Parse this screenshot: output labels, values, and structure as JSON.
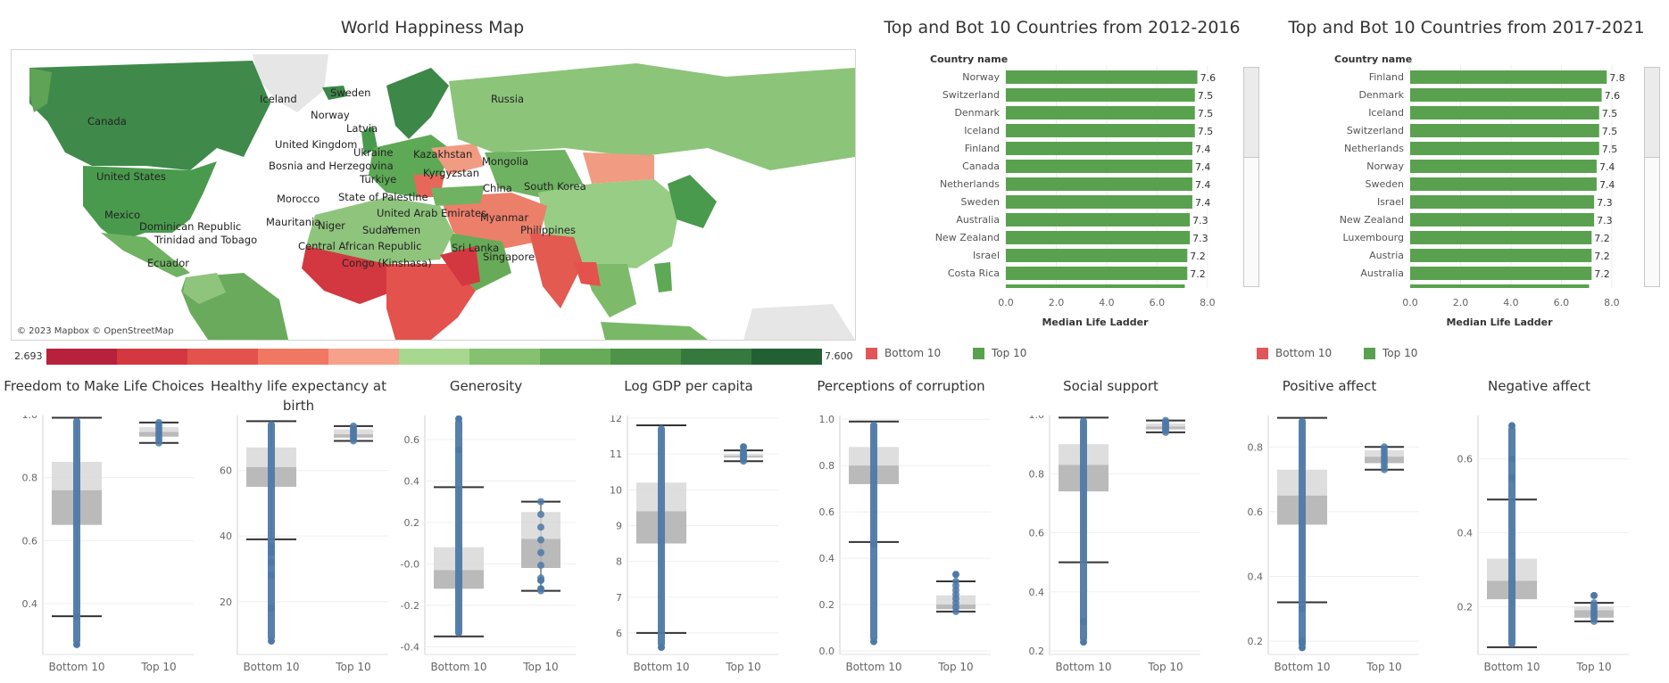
{
  "map": {
    "title": "World Happiness Map",
    "credit": "© 2023 Mapbox © OpenStreetMap",
    "legend_min": "2.693",
    "legend_max": "7.600",
    "legend_colors": [
      "#b8213c",
      "#d33840",
      "#e4524d",
      "#f07863",
      "#f7a08a",
      "#a8d890",
      "#86c170",
      "#67ab58",
      "#4d9449",
      "#35793e",
      "#226033"
    ],
    "labels": [
      "Iceland",
      "Sweden",
      "Norway",
      "Russia",
      "Canada",
      "Latvia",
      "United Kingdom",
      "Ukraine",
      "Kazakhstan",
      "Mongolia",
      "Bosnia and Herzegovina",
      "Kyrgyzstan",
      "Türkiye",
      "United States",
      "China",
      "South Korea",
      "Morocco",
      "State of Palestine",
      "United Arab Emirates",
      "Mexico",
      "Dominican Republic",
      "Mauritania",
      "Niger",
      "Sudan",
      "Yemen",
      "Myanmar",
      "Philippines",
      "Trinidad and Tobago",
      "Central African Republic",
      "Sri Lanka",
      "Singapore",
      "Ecuador",
      "Congo (Kinshasa)"
    ]
  },
  "chart_data": [
    {
      "type": "bar",
      "title": "Top and Bot 10 Countries from 2012-2016",
      "row_header": "Country name",
      "categories": [
        "Norway",
        "Switzerland",
        "Denmark",
        "Iceland",
        "Finland",
        "Canada",
        "Netherlands",
        "Sweden",
        "Australia",
        "New Zealand",
        "Israel",
        "Costa Rica"
      ],
      "values": [
        7.6,
        7.5,
        7.5,
        7.5,
        7.4,
        7.4,
        7.4,
        7.4,
        7.3,
        7.3,
        7.2,
        7.2
      ],
      "value_labels": [
        "7.6",
        "7.5",
        "7.5",
        "7.5",
        "7.4",
        "7.4",
        "7.4",
        "7.4",
        "7.3",
        "7.3",
        "7.2",
        "7.2"
      ],
      "series": [
        {
          "name": "Top 10",
          "color": "#59a14f"
        }
      ],
      "xlabel": "Median Life Ladder",
      "xlim": [
        0,
        8.5
      ],
      "xticks": [
        "0.0",
        "2.0",
        "4.0",
        "6.0",
        "8.0"
      ],
      "legend": [
        "Bottom 10",
        "Top 10"
      ]
    },
    {
      "type": "bar",
      "title": "Top and Bot 10 Countries from 2017-2021",
      "row_header": "Country name",
      "categories": [
        "Finland",
        "Denmark",
        "Iceland",
        "Switzerland",
        "Netherlands",
        "Norway",
        "Sweden",
        "Israel",
        "New Zealand",
        "Luxembourg",
        "Austria",
        "Australia"
      ],
      "values": [
        7.8,
        7.6,
        7.5,
        7.5,
        7.5,
        7.4,
        7.4,
        7.3,
        7.3,
        7.2,
        7.2,
        7.2
      ],
      "value_labels": [
        "7.8",
        "7.6",
        "7.5",
        "7.5",
        "7.5",
        "7.4",
        "7.4",
        "7.3",
        "7.3",
        "7.2",
        "7.2",
        "7.2"
      ],
      "series": [
        {
          "name": "Top 10",
          "color": "#59a14f"
        }
      ],
      "xlabel": "Median Life Ladder",
      "xlim": [
        0,
        8.5
      ],
      "xticks": [
        "0.0",
        "2.0",
        "4.0",
        "6.0",
        "8.0"
      ],
      "legend": [
        "Bottom 10",
        "Top 10"
      ]
    },
    {
      "type": "box",
      "title": "Freedom to Make Life Choices",
      "categories": [
        "Bottom 10",
        "Top 10"
      ],
      "ylim": [
        0.25,
        1.0
      ],
      "yticks": [
        0.4,
        0.6,
        0.8,
        1.0
      ],
      "ytick_labels": [
        "0.4",
        "0.6",
        "0.8",
        "1.0"
      ],
      "boxes": [
        {
          "min": 0.36,
          "q1": 0.65,
          "median": 0.76,
          "q3": 0.85,
          "max": 0.99,
          "outliers_low": [
            0.27,
            0.36
          ],
          "outliers_high": []
        },
        {
          "min": 0.91,
          "q1": 0.93,
          "median": 0.945,
          "q3": 0.96,
          "max": 0.975,
          "outliers_low": [],
          "outliers_high": []
        }
      ]
    },
    {
      "type": "box",
      "title": "Healthy life expectancy at birth",
      "categories": [
        "Bottom 10",
        "Top 10"
      ],
      "ylim": [
        5,
        77
      ],
      "yticks": [
        20,
        40,
        60
      ],
      "ytick_labels": [
        "20",
        "40",
        "60"
      ],
      "boxes": [
        {
          "min": 39,
          "q1": 55,
          "median": 61,
          "q3": 67,
          "max": 75,
          "outliers_low": [
            8,
            18,
            28,
            32,
            35,
            37
          ],
          "outliers_high": []
        },
        {
          "min": 69,
          "q1": 70,
          "median": 71,
          "q3": 72.5,
          "max": 73.5,
          "outliers_low": [],
          "outliers_high": []
        }
      ]
    },
    {
      "type": "box",
      "title": "Generosity",
      "categories": [
        "Bottom 10",
        "Top 10"
      ],
      "ylim": [
        -0.42,
        0.72
      ],
      "yticks": [
        -0.4,
        -0.2,
        0.0,
        0.2,
        0.4,
        0.6
      ],
      "ytick_labels": [
        "-0.4",
        "-0.2",
        "-0.0",
        "0.2",
        "0.4",
        "0.6"
      ],
      "boxes": [
        {
          "min": -0.35,
          "q1": -0.12,
          "median": -0.03,
          "q3": 0.08,
          "max": 0.37,
          "outliers_low": [],
          "outliers_high": [
            0.55,
            0.7
          ]
        },
        {
          "min": -0.13,
          "q1": -0.02,
          "median": 0.12,
          "q3": 0.25,
          "max": 0.3,
          "outliers_low": [
            -0.12,
            -0.08
          ],
          "outliers_high": []
        }
      ]
    },
    {
      "type": "box",
      "title": "Log GDP per capita",
      "categories": [
        "Bottom 10",
        "Top 10"
      ],
      "ylim": [
        5.5,
        12.1
      ],
      "yticks": [
        6,
        7,
        8,
        9,
        10,
        11,
        12
      ],
      "ytick_labels": [
        "6",
        "7",
        "8",
        "9",
        "10",
        "11",
        "12"
      ],
      "boxes": [
        {
          "min": 6.0,
          "q1": 8.5,
          "median": 9.4,
          "q3": 10.2,
          "max": 11.8,
          "outliers_low": [
            5.6
          ],
          "outliers_high": []
        },
        {
          "min": 10.8,
          "q1": 10.9,
          "median": 10.95,
          "q3": 11.0,
          "max": 11.1,
          "outliers_low": [],
          "outliers_high": [
            11.2
          ]
        }
      ]
    },
    {
      "type": "box",
      "title": "Perceptions of corruption",
      "categories": [
        "Bottom 10",
        "Top 10"
      ],
      "ylim": [
        0.0,
        1.02
      ],
      "yticks": [
        0.0,
        0.2,
        0.4,
        0.6,
        0.8,
        1.0
      ],
      "ytick_labels": [
        "0.0",
        "0.2",
        "0.4",
        "0.6",
        "0.8",
        "1.0"
      ],
      "boxes": [
        {
          "min": 0.47,
          "q1": 0.72,
          "median": 0.8,
          "q3": 0.88,
          "max": 0.99,
          "outliers_low": [
            0.04,
            0.46
          ],
          "outliers_high": []
        },
        {
          "min": 0.17,
          "q1": 0.18,
          "median": 0.2,
          "q3": 0.24,
          "max": 0.3,
          "outliers_low": [],
          "outliers_high": [
            0.33
          ]
        }
      ]
    },
    {
      "type": "box",
      "title": "Social support",
      "categories": [
        "Bottom 10",
        "Top 10"
      ],
      "ylim": [
        0.2,
        1.0
      ],
      "yticks": [
        0.2,
        0.4,
        0.6,
        0.8,
        1.0
      ],
      "ytick_labels": [
        "0.2",
        "0.4",
        "0.6",
        "0.8",
        "1.0"
      ],
      "boxes": [
        {
          "min": 0.5,
          "q1": 0.74,
          "median": 0.83,
          "q3": 0.9,
          "max": 0.99,
          "outliers_low": [
            0.23,
            0.3
          ],
          "outliers_high": []
        },
        {
          "min": 0.94,
          "q1": 0.95,
          "median": 0.96,
          "q3": 0.97,
          "max": 0.98,
          "outliers_low": [],
          "outliers_high": []
        }
      ]
    },
    {
      "type": "box",
      "title": "Positive affect",
      "categories": [
        "Bottom 10",
        "Top 10"
      ],
      "ylim": [
        0.17,
        0.9
      ],
      "yticks": [
        0.2,
        0.4,
        0.6,
        0.8
      ],
      "ytick_labels": [
        "0.2",
        "0.4",
        "0.6",
        "0.8"
      ],
      "boxes": [
        {
          "min": 0.32,
          "q1": 0.56,
          "median": 0.65,
          "q3": 0.73,
          "max": 0.89,
          "outliers_low": [
            0.18,
            0.2,
            0.3
          ],
          "outliers_high": []
        },
        {
          "min": 0.73,
          "q1": 0.75,
          "median": 0.77,
          "q3": 0.79,
          "max": 0.8,
          "outliers_low": [],
          "outliers_high": []
        }
      ]
    },
    {
      "type": "box",
      "title": "Negative affect",
      "categories": [
        "Bottom 10",
        "Top 10"
      ],
      "ylim": [
        0.08,
        0.72
      ],
      "yticks": [
        0.2,
        0.4,
        0.6
      ],
      "ytick_labels": [
        "0.2",
        "0.4",
        "0.6"
      ],
      "boxes": [
        {
          "min": 0.09,
          "q1": 0.22,
          "median": 0.27,
          "q3": 0.33,
          "max": 0.49,
          "outliers_low": [],
          "outliers_high": [
            0.55,
            0.6,
            0.69
          ]
        },
        {
          "min": 0.16,
          "q1": 0.17,
          "median": 0.19,
          "q3": 0.2,
          "max": 0.21,
          "outliers_low": [],
          "outliers_high": [
            0.23
          ]
        }
      ]
    }
  ]
}
